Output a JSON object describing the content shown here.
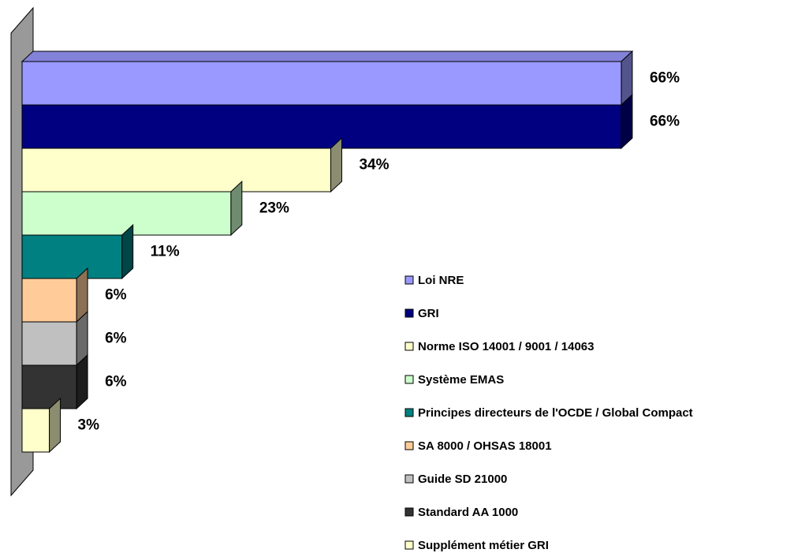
{
  "chart_data": {
    "type": "bar3d_horizontal",
    "xlim": [
      0,
      70
    ],
    "series": [
      {
        "name": "Loi NRE",
        "color": "#9999ff",
        "values": [
          66
        ],
        "value_labels": [
          "66%"
        ]
      },
      {
        "name": "GRI",
        "color": "#000080",
        "values": [
          66
        ],
        "value_labels": [
          "66%"
        ]
      },
      {
        "name": "Norme ISO 14001 / 9001 / 14063",
        "color": "#ffffcc",
        "values": [
          34
        ],
        "value_labels": [
          "34%"
        ]
      },
      {
        "name": "Système EMAS",
        "color": "#ccffcc",
        "values": [
          23
        ],
        "value_labels": [
          "23%"
        ]
      },
      {
        "name": "Principes directeurs de l'OCDE / Global Compact",
        "color": "#008080",
        "values": [
          11
        ],
        "value_labels": [
          "11%"
        ]
      },
      {
        "name": "SA 8000 / OHSAS 18001",
        "color": "#ffcc99",
        "values": [
          6
        ],
        "value_labels": [
          "6%"
        ]
      },
      {
        "name": "Guide SD 21000",
        "color": "#c0c0c0",
        "values": [
          6
        ],
        "value_labels": [
          "6%"
        ]
      },
      {
        "name": "Standard AA 1000",
        "color": "#333333",
        "values": [
          6
        ],
        "value_labels": [
          "6%"
        ]
      },
      {
        "name": "Supplément métier GRI",
        "color": "#ffffcc",
        "values": [
          3
        ],
        "value_labels": [
          "3%"
        ]
      }
    ],
    "legend": "right"
  }
}
